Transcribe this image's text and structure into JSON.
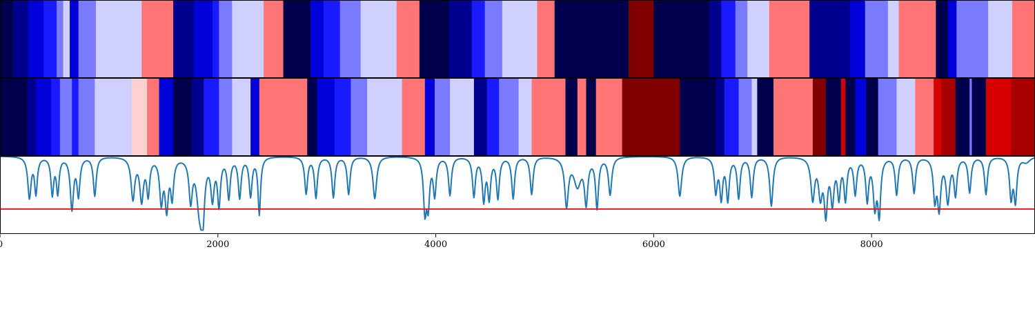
{
  "chart_data": {
    "type": "heatmap",
    "title": "",
    "xlim": [
      0,
      9500
    ],
    "xticks": [
      0,
      2000,
      4000,
      6000,
      8000
    ],
    "xtick_labels": [
      "0",
      "2000",
      "4000",
      "6000",
      "8000"
    ],
    "grid": false,
    "legend": "none",
    "colormap": "seismic",
    "colormap_colors": {
      "darkblue": "#00004c",
      "navy": "#00008f",
      "blue": "#0000d9",
      "bright_blue": "#1a1aff",
      "mid_blue": "#7a7aff",
      "light_blue": "#d0d0ff",
      "light_red": "#ffd0d0",
      "salmon": "#ff7575",
      "red": "#d60000",
      "crimson": "#a80000",
      "darkred": "#800000"
    },
    "rows": [
      {
        "name": "",
        "segments": [
          {
            "x0": 0,
            "x1": 120,
            "color": "#00004c"
          },
          {
            "x0": 120,
            "x1": 260,
            "color": "#00008f"
          },
          {
            "x0": 260,
            "x1": 400,
            "color": "#0000d9"
          },
          {
            "x0": 400,
            "x1": 520,
            "color": "#1a1aff"
          },
          {
            "x0": 520,
            "x1": 580,
            "color": "#7a7aff"
          },
          {
            "x0": 580,
            "x1": 640,
            "color": "#d0d0ff"
          },
          {
            "x0": 640,
            "x1": 720,
            "color": "#0000d9"
          },
          {
            "x0": 720,
            "x1": 880,
            "color": "#7a7aff"
          },
          {
            "x0": 880,
            "x1": 1300,
            "color": "#d0d0ff"
          },
          {
            "x0": 1300,
            "x1": 1590,
            "color": "#ff7575"
          },
          {
            "x0": 1590,
            "x1": 1780,
            "color": "#00008f"
          },
          {
            "x0": 1780,
            "x1": 1950,
            "color": "#0000d9"
          },
          {
            "x0": 1950,
            "x1": 2010,
            "color": "#1a1aff"
          },
          {
            "x0": 2010,
            "x1": 2130,
            "color": "#7a7aff"
          },
          {
            "x0": 2130,
            "x1": 2420,
            "color": "#d0d0ff"
          },
          {
            "x0": 2420,
            "x1": 2600,
            "color": "#ff7575"
          },
          {
            "x0": 2600,
            "x1": 2850,
            "color": "#00004c"
          },
          {
            "x0": 2850,
            "x1": 2970,
            "color": "#0000d9"
          },
          {
            "x0": 2970,
            "x1": 3120,
            "color": "#1a1aff"
          },
          {
            "x0": 3120,
            "x1": 3310,
            "color": "#7a7aff"
          },
          {
            "x0": 3310,
            "x1": 3640,
            "color": "#d0d0ff"
          },
          {
            "x0": 3640,
            "x1": 3850,
            "color": "#ff7575"
          },
          {
            "x0": 3850,
            "x1": 4120,
            "color": "#00004c"
          },
          {
            "x0": 4120,
            "x1": 4330,
            "color": "#00008f"
          },
          {
            "x0": 4330,
            "x1": 4450,
            "color": "#1a1aff"
          },
          {
            "x0": 4450,
            "x1": 4610,
            "color": "#7a7aff"
          },
          {
            "x0": 4610,
            "x1": 4930,
            "color": "#d0d0ff"
          },
          {
            "x0": 4930,
            "x1": 5090,
            "color": "#ff7575"
          },
          {
            "x0": 5090,
            "x1": 5770,
            "color": "#00004c"
          },
          {
            "x0": 5770,
            "x1": 6000,
            "color": "#800000"
          },
          {
            "x0": 6000,
            "x1": 6510,
            "color": "#00004c"
          },
          {
            "x0": 6510,
            "x1": 6620,
            "color": "#00008f"
          },
          {
            "x0": 6620,
            "x1": 6750,
            "color": "#1a1aff"
          },
          {
            "x0": 6750,
            "x1": 6860,
            "color": "#7a7aff"
          },
          {
            "x0": 6860,
            "x1": 7060,
            "color": "#d0d0ff"
          },
          {
            "x0": 7060,
            "x1": 7430,
            "color": "#ff7575"
          },
          {
            "x0": 7430,
            "x1": 7800,
            "color": "#00008f"
          },
          {
            "x0": 7800,
            "x1": 7940,
            "color": "#0000d9"
          },
          {
            "x0": 7940,
            "x1": 8150,
            "color": "#7a7aff"
          },
          {
            "x0": 8150,
            "x1": 8250,
            "color": "#d0d0ff"
          },
          {
            "x0": 8250,
            "x1": 8590,
            "color": "#ff7575"
          },
          {
            "x0": 8590,
            "x1": 8700,
            "color": "#00004c"
          },
          {
            "x0": 8700,
            "x1": 8780,
            "color": "#0000d9"
          },
          {
            "x0": 8780,
            "x1": 9070,
            "color": "#7a7aff"
          },
          {
            "x0": 9070,
            "x1": 9290,
            "color": "#d0d0ff"
          },
          {
            "x0": 9290,
            "x1": 9500,
            "color": "#ff7575"
          }
        ]
      },
      {
        "name": "",
        "segments": [
          {
            "x0": 0,
            "x1": 250,
            "color": "#00004c"
          },
          {
            "x0": 250,
            "x1": 330,
            "color": "#00008f"
          },
          {
            "x0": 330,
            "x1": 470,
            "color": "#0000d9"
          },
          {
            "x0": 470,
            "x1": 550,
            "color": "#1a1aff"
          },
          {
            "x0": 550,
            "x1": 660,
            "color": "#7a7aff"
          },
          {
            "x0": 660,
            "x1": 720,
            "color": "#1a1aff"
          },
          {
            "x0": 720,
            "x1": 870,
            "color": "#7a7aff"
          },
          {
            "x0": 870,
            "x1": 1210,
            "color": "#d0d0ff"
          },
          {
            "x0": 1210,
            "x1": 1350,
            "color": "#ffd0d0"
          },
          {
            "x0": 1350,
            "x1": 1460,
            "color": "#ff7575"
          },
          {
            "x0": 1460,
            "x1": 1590,
            "color": "#0000d9"
          },
          {
            "x0": 1590,
            "x1": 1760,
            "color": "#00004c"
          },
          {
            "x0": 1760,
            "x1": 1870,
            "color": "#00008f"
          },
          {
            "x0": 1870,
            "x1": 2010,
            "color": "#1a1aff"
          },
          {
            "x0": 2010,
            "x1": 2130,
            "color": "#7a7aff"
          },
          {
            "x0": 2130,
            "x1": 2300,
            "color": "#d0d0ff"
          },
          {
            "x0": 2300,
            "x1": 2380,
            "color": "#0000d9"
          },
          {
            "x0": 2380,
            "x1": 2820,
            "color": "#ff7575"
          },
          {
            "x0": 2820,
            "x1": 2910,
            "color": "#00004c"
          },
          {
            "x0": 2910,
            "x1": 3070,
            "color": "#0000d9"
          },
          {
            "x0": 3070,
            "x1": 3220,
            "color": "#1a1aff"
          },
          {
            "x0": 3220,
            "x1": 3370,
            "color": "#7a7aff"
          },
          {
            "x0": 3370,
            "x1": 3690,
            "color": "#d0d0ff"
          },
          {
            "x0": 3690,
            "x1": 3900,
            "color": "#ff7575"
          },
          {
            "x0": 3900,
            "x1": 3990,
            "color": "#0000d9"
          },
          {
            "x0": 3990,
            "x1": 4130,
            "color": "#7a7aff"
          },
          {
            "x0": 4130,
            "x1": 4350,
            "color": "#d0d0ff"
          },
          {
            "x0": 4350,
            "x1": 4470,
            "color": "#00008f"
          },
          {
            "x0": 4470,
            "x1": 4580,
            "color": "#1a1aff"
          },
          {
            "x0": 4580,
            "x1": 4760,
            "color": "#7a7aff"
          },
          {
            "x0": 4760,
            "x1": 4880,
            "color": "#d0d0ff"
          },
          {
            "x0": 4880,
            "x1": 5190,
            "color": "#ff7575"
          },
          {
            "x0": 5190,
            "x1": 5300,
            "color": "#00004c"
          },
          {
            "x0": 5300,
            "x1": 5380,
            "color": "#ff7575"
          },
          {
            "x0": 5380,
            "x1": 5470,
            "color": "#00004c"
          },
          {
            "x0": 5470,
            "x1": 5710,
            "color": "#ff7575"
          },
          {
            "x0": 5710,
            "x1": 6240,
            "color": "#800000"
          },
          {
            "x0": 6240,
            "x1": 6570,
            "color": "#00004c"
          },
          {
            "x0": 6570,
            "x1": 6650,
            "color": "#00008f"
          },
          {
            "x0": 6650,
            "x1": 6780,
            "color": "#1a1aff"
          },
          {
            "x0": 6780,
            "x1": 6900,
            "color": "#7a7aff"
          },
          {
            "x0": 6900,
            "x1": 6950,
            "color": "#d0d0ff"
          },
          {
            "x0": 6950,
            "x1": 7100,
            "color": "#00004c"
          },
          {
            "x0": 7100,
            "x1": 7460,
            "color": "#ff7575"
          },
          {
            "x0": 7460,
            "x1": 7580,
            "color": "#800000"
          },
          {
            "x0": 7580,
            "x1": 7720,
            "color": "#00004c"
          },
          {
            "x0": 7720,
            "x1": 7760,
            "color": "#d60000"
          },
          {
            "x0": 7760,
            "x1": 7850,
            "color": "#00004c"
          },
          {
            "x0": 7850,
            "x1": 7950,
            "color": "#0000d9"
          },
          {
            "x0": 7950,
            "x1": 8060,
            "color": "#00004c"
          },
          {
            "x0": 8060,
            "x1": 8230,
            "color": "#7a7aff"
          },
          {
            "x0": 8230,
            "x1": 8400,
            "color": "#d0d0ff"
          },
          {
            "x0": 8400,
            "x1": 8570,
            "color": "#ff7575"
          },
          {
            "x0": 8570,
            "x1": 8640,
            "color": "#d60000"
          },
          {
            "x0": 8640,
            "x1": 8770,
            "color": "#a80000"
          },
          {
            "x0": 8770,
            "x1": 8900,
            "color": "#00004c"
          },
          {
            "x0": 8900,
            "x1": 8920,
            "color": "#7a7aff"
          },
          {
            "x0": 8920,
            "x1": 9050,
            "color": "#00004c"
          },
          {
            "x0": 9050,
            "x1": 9280,
            "color": "#d60000"
          },
          {
            "x0": 9280,
            "x1": 9500,
            "color": "#a80000"
          }
        ]
      }
    ],
    "line_panel": {
      "ylim": [
        0,
        1
      ],
      "threshold": 0.32,
      "threshold_color": "#e31a1c",
      "line_color": "#1f77b4",
      "baseline": 1.0,
      "dips": [
        [
          270,
          0.48,
          18
        ],
        [
          330,
          0.54,
          15
        ],
        [
          480,
          0.53,
          15
        ],
        [
          530,
          0.55,
          15
        ],
        [
          660,
          0.34,
          18
        ],
        [
          720,
          0.52,
          16
        ],
        [
          870,
          0.5,
          16
        ],
        [
          1220,
          0.47,
          20
        ],
        [
          1300,
          0.46,
          20
        ],
        [
          1360,
          0.54,
          16
        ],
        [
          1480,
          0.45,
          18
        ],
        [
          1530,
          0.37,
          18
        ],
        [
          1580,
          0.51,
          16
        ],
        [
          1750,
          0.47,
          18
        ],
        [
          1830,
          0.4,
          30
        ],
        [
          1860,
          0.26,
          18
        ],
        [
          1950,
          0.5,
          18
        ],
        [
          2010,
          0.41,
          16
        ],
        [
          2100,
          0.49,
          16
        ],
        [
          2200,
          0.49,
          16
        ],
        [
          2300,
          0.51,
          16
        ],
        [
          2380,
          0.27,
          14
        ],
        [
          2810,
          0.53,
          16
        ],
        [
          2900,
          0.48,
          16
        ],
        [
          3060,
          0.48,
          16
        ],
        [
          3200,
          0.52,
          16
        ],
        [
          3440,
          0.46,
          20
        ],
        [
          3900,
          0.34,
          16
        ],
        [
          3930,
          0.42,
          16
        ],
        [
          3990,
          0.52,
          16
        ],
        [
          4130,
          0.51,
          16
        ],
        [
          4350,
          0.5,
          16
        ],
        [
          4440,
          0.46,
          16
        ],
        [
          4490,
          0.49,
          16
        ],
        [
          4570,
          0.48,
          16
        ],
        [
          4710,
          0.47,
          16
        ],
        [
          4880,
          0.52,
          16
        ],
        [
          5200,
          0.39,
          20
        ],
        [
          5300,
          0.64,
          40
        ],
        [
          5380,
          0.44,
          18
        ],
        [
          5480,
          0.36,
          16
        ],
        [
          5600,
          0.52,
          18
        ],
        [
          6240,
          0.49,
          20
        ],
        [
          6570,
          0.56,
          16
        ],
        [
          6620,
          0.49,
          16
        ],
        [
          6680,
          0.46,
          16
        ],
        [
          6780,
          0.48,
          16
        ],
        [
          6900,
          0.49,
          16
        ],
        [
          7080,
          0.37,
          18
        ],
        [
          7460,
          0.47,
          20
        ],
        [
          7530,
          0.54,
          20
        ],
        [
          7580,
          0.31,
          18
        ],
        [
          7640,
          0.45,
          18
        ],
        [
          7700,
          0.52,
          16
        ],
        [
          7760,
          0.48,
          16
        ],
        [
          7850,
          0.54,
          16
        ],
        [
          7960,
          0.46,
          16
        ],
        [
          8030,
          0.4,
          18
        ],
        [
          8070,
          0.3,
          16
        ],
        [
          8230,
          0.52,
          16
        ],
        [
          8390,
          0.54,
          16
        ],
        [
          8580,
          0.49,
          16
        ],
        [
          8620,
          0.37,
          18
        ],
        [
          8700,
          0.44,
          20
        ],
        [
          8770,
          0.53,
          16
        ],
        [
          8900,
          0.55,
          16
        ],
        [
          9050,
          0.52,
          16
        ],
        [
          9280,
          0.49,
          16
        ],
        [
          9320,
          0.45,
          16
        ],
        [
          9420,
          0.93,
          40
        ]
      ]
    }
  }
}
